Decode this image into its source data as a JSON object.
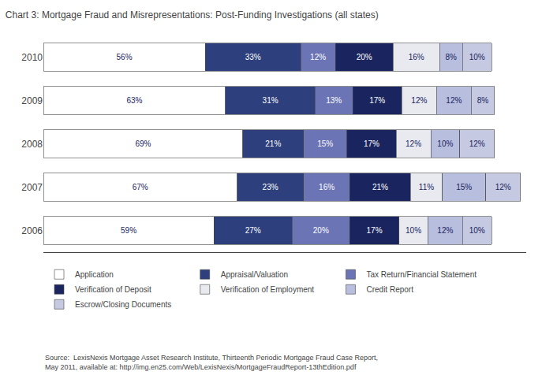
{
  "chart_data": {
    "type": "bar",
    "orientation": "horizontal",
    "stacked": true,
    "title": "Chart 3: Mortgage Fraud and Misrepresentations: Post-Funding Investigations (all states)",
    "annotations": [
      "Source:  LexisNexis Mortgage Asset Research Institute, Thirteenth Periodic Mortgage Fraud Case Report,\nMay 2011, available at: http://img.en25.com/Web/LexisNexis/MortgageFraudReport-13thEdition.pdf"
    ],
    "categories": [
      "2010",
      "2009",
      "2008",
      "2007",
      "2006"
    ],
    "series": [
      {
        "name": "Application",
        "color": "#ffffff",
        "values": [
          56,
          63,
          69,
          67,
          59
        ],
        "value_labels": [
          "56%",
          "63%",
          "69%",
          "67%",
          "59%"
        ]
      },
      {
        "name": "Appraisal/Valuation",
        "color": "#2d3f7c",
        "values": [
          33,
          31,
          21,
          23,
          27
        ],
        "value_labels": [
          "33%",
          "31%",
          "21%",
          "23%",
          "27%"
        ]
      },
      {
        "name": "Tax Return/Financial Statement",
        "color": "#6b75b5",
        "values": [
          12,
          13,
          15,
          16,
          20
        ],
        "value_labels": [
          "12%",
          "13%",
          "15%",
          "16%",
          "20%"
        ]
      },
      {
        "name": "Verification of Deposit",
        "color": "#1a2560",
        "values": [
          20,
          17,
          17,
          21,
          17
        ],
        "value_labels": [
          "20%",
          "17%",
          "17%",
          "21%",
          "17%"
        ]
      },
      {
        "name": "Verification of Employment",
        "color": "#e8eaf0",
        "values": [
          16,
          12,
          12,
          11,
          10
        ],
        "value_labels": [
          "16%",
          "12%",
          "12%",
          "11%",
          "10%"
        ]
      },
      {
        "name": "Credit Report",
        "color": "#b8bede",
        "values": [
          8,
          12,
          10,
          15,
          12
        ],
        "value_labels": [
          "8%",
          "12%",
          "10%",
          "15%",
          "12%"
        ]
      },
      {
        "name": "Escrow/Closing Documents",
        "color": "#c5c9e2",
        "values": [
          10,
          8,
          12,
          12,
          10
        ],
        "value_labels": [
          "10%",
          "8%",
          "12%",
          "12%",
          "10%"
        ]
      }
    ],
    "xlim": [
      0,
      167
    ],
    "tick_labels": "y",
    "grid": false,
    "data_labels": true,
    "legend": "bottom"
  }
}
